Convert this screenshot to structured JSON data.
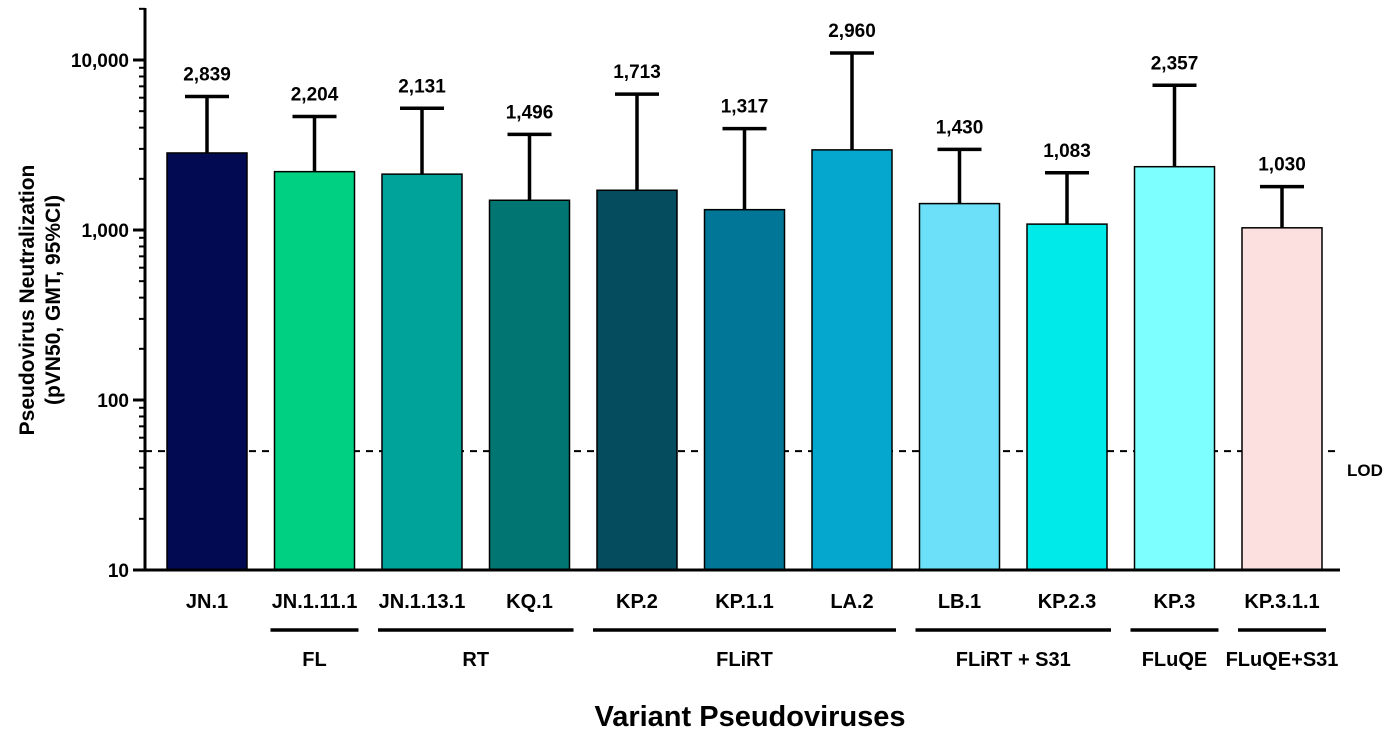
{
  "chart_data": {
    "type": "bar",
    "y_scale": "log",
    "ylim": [
      10,
      20000
    ],
    "grid": false,
    "ylabel_line1": "Pseudovirus Neutralization",
    "ylabel_line2": "(pVN50, GMT, 95%CI)",
    "xlabel": "Variant Pseudoviruses",
    "yticks": [
      {
        "value": 10,
        "label": "10"
      },
      {
        "value": 100,
        "label": "100"
      },
      {
        "value": 1000,
        "label": "1,000"
      },
      {
        "value": 10000,
        "label": "10,000"
      }
    ],
    "lod": {
      "value": 50,
      "label": "LOD"
    },
    "categories": [
      "JN.1",
      "JN.1.11.1",
      "JN.1.13.1",
      "KQ.1",
      "KP.2",
      "KP.1.1",
      "LA.2",
      "LB.1",
      "KP.2.3",
      "KP.3",
      "KP.3.1.1"
    ],
    "values": [
      2839,
      2204,
      2131,
      1496,
      1713,
      1317,
      2960,
      1430,
      1083,
      2357,
      1030
    ],
    "value_labels": [
      "2,839",
      "2,204",
      "2,131",
      "1,496",
      "1,713",
      "1,317",
      "2,960",
      "1,430",
      "1,083",
      "2,357",
      "1,030"
    ],
    "ci_upper": [
      6100,
      4650,
      5200,
      3650,
      6300,
      3950,
      11000,
      2980,
      2170,
      7100,
      1800
    ],
    "colors": [
      "#020A52",
      "#00D081",
      "#00A39A",
      "#007571",
      "#044C5E",
      "#027696",
      "#06A7CF",
      "#6CE0F8",
      "#00EAEA",
      "#7DFFFF",
      "#FCE0E0"
    ],
    "groups": [
      {
        "label": "FL",
        "from": 1,
        "to": 1
      },
      {
        "label": "RT",
        "from": 2,
        "to": 3
      },
      {
        "label": "FLiRT",
        "from": 4,
        "to": 6
      },
      {
        "label": "FLiRT + S31",
        "from": 7,
        "to": 8
      },
      {
        "label": "FLuQE",
        "from": 9,
        "to": 9
      },
      {
        "label": "FLuQE+S31",
        "from": 10,
        "to": 10
      }
    ]
  }
}
